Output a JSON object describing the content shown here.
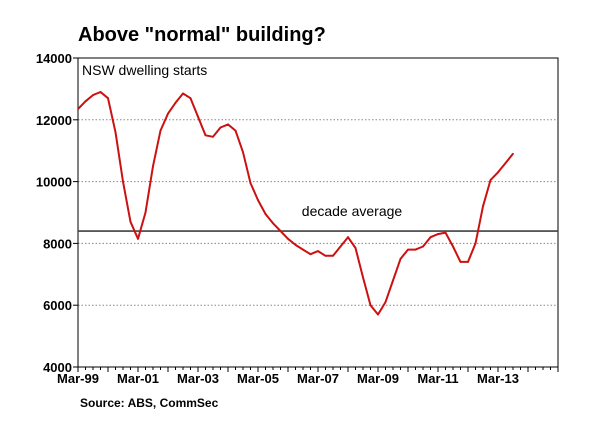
{
  "chart_data": {
    "type": "line",
    "title": "Above \"normal\" building?",
    "source": "Source: ABS, CommSec",
    "series_label": "NSW dwelling starts",
    "reference_line": {
      "label": "decade average",
      "value": 8400,
      "color": "#404040"
    },
    "ylim": [
      4000,
      14000
    ],
    "y_ticks": [
      4000,
      6000,
      8000,
      10000,
      12000,
      14000
    ],
    "y_tick_labels": [
      "4000",
      "6000",
      "8000",
      "10000",
      "12000",
      "14000"
    ],
    "x_ticks": [
      "Mar-99",
      "Mar-01",
      "Mar-03",
      "Mar-05",
      "Mar-07",
      "Mar-09",
      "Mar-11",
      "Mar-13"
    ],
    "x_quarter_range": [
      0,
      64
    ],
    "grid": true,
    "series": [
      {
        "color": "#cc1111",
        "x": [
          "Mar-99",
          "Jun-99",
          "Sep-99",
          "Dec-99",
          "Mar-00",
          "Jun-00",
          "Sep-00",
          "Dec-00",
          "Mar-01",
          "Jun-01",
          "Sep-01",
          "Dec-01",
          "Mar-02",
          "Jun-02",
          "Sep-02",
          "Dec-02",
          "Mar-03",
          "Jun-03",
          "Sep-03",
          "Dec-03",
          "Mar-04",
          "Jun-04",
          "Sep-04",
          "Dec-04",
          "Mar-05",
          "Jun-05",
          "Sep-05",
          "Dec-05",
          "Mar-06",
          "Jun-06",
          "Sep-06",
          "Dec-06",
          "Mar-07",
          "Jun-07",
          "Sep-07",
          "Dec-07",
          "Mar-08",
          "Jun-08",
          "Sep-08",
          "Dec-08",
          "Mar-09",
          "Jun-09",
          "Sep-09",
          "Dec-09",
          "Mar-10",
          "Jun-10",
          "Sep-10",
          "Dec-10",
          "Mar-11",
          "Jun-11",
          "Sep-11",
          "Dec-11",
          "Mar-12",
          "Jun-12",
          "Sep-12",
          "Dec-12",
          "Mar-13",
          "Jun-13",
          "Sep-13"
        ],
        "values": [
          12350,
          12600,
          12800,
          12900,
          12700,
          11600,
          10000,
          8700,
          8150,
          9000,
          10500,
          11650,
          12200,
          12550,
          12850,
          12700,
          12100,
          11500,
          11450,
          11750,
          11850,
          11650,
          10950,
          9950,
          9400,
          8950,
          8650,
          8400,
          8150,
          7950,
          7800,
          7650,
          7750,
          7600,
          7600,
          7900,
          8200,
          7850,
          6900,
          6000,
          5700,
          6100,
          6800,
          7500,
          7800,
          7800,
          7900,
          8200,
          8300,
          8350,
          7900,
          7400,
          7400,
          8000,
          9200,
          10050,
          10300,
          10600,
          10900
        ]
      }
    ]
  }
}
